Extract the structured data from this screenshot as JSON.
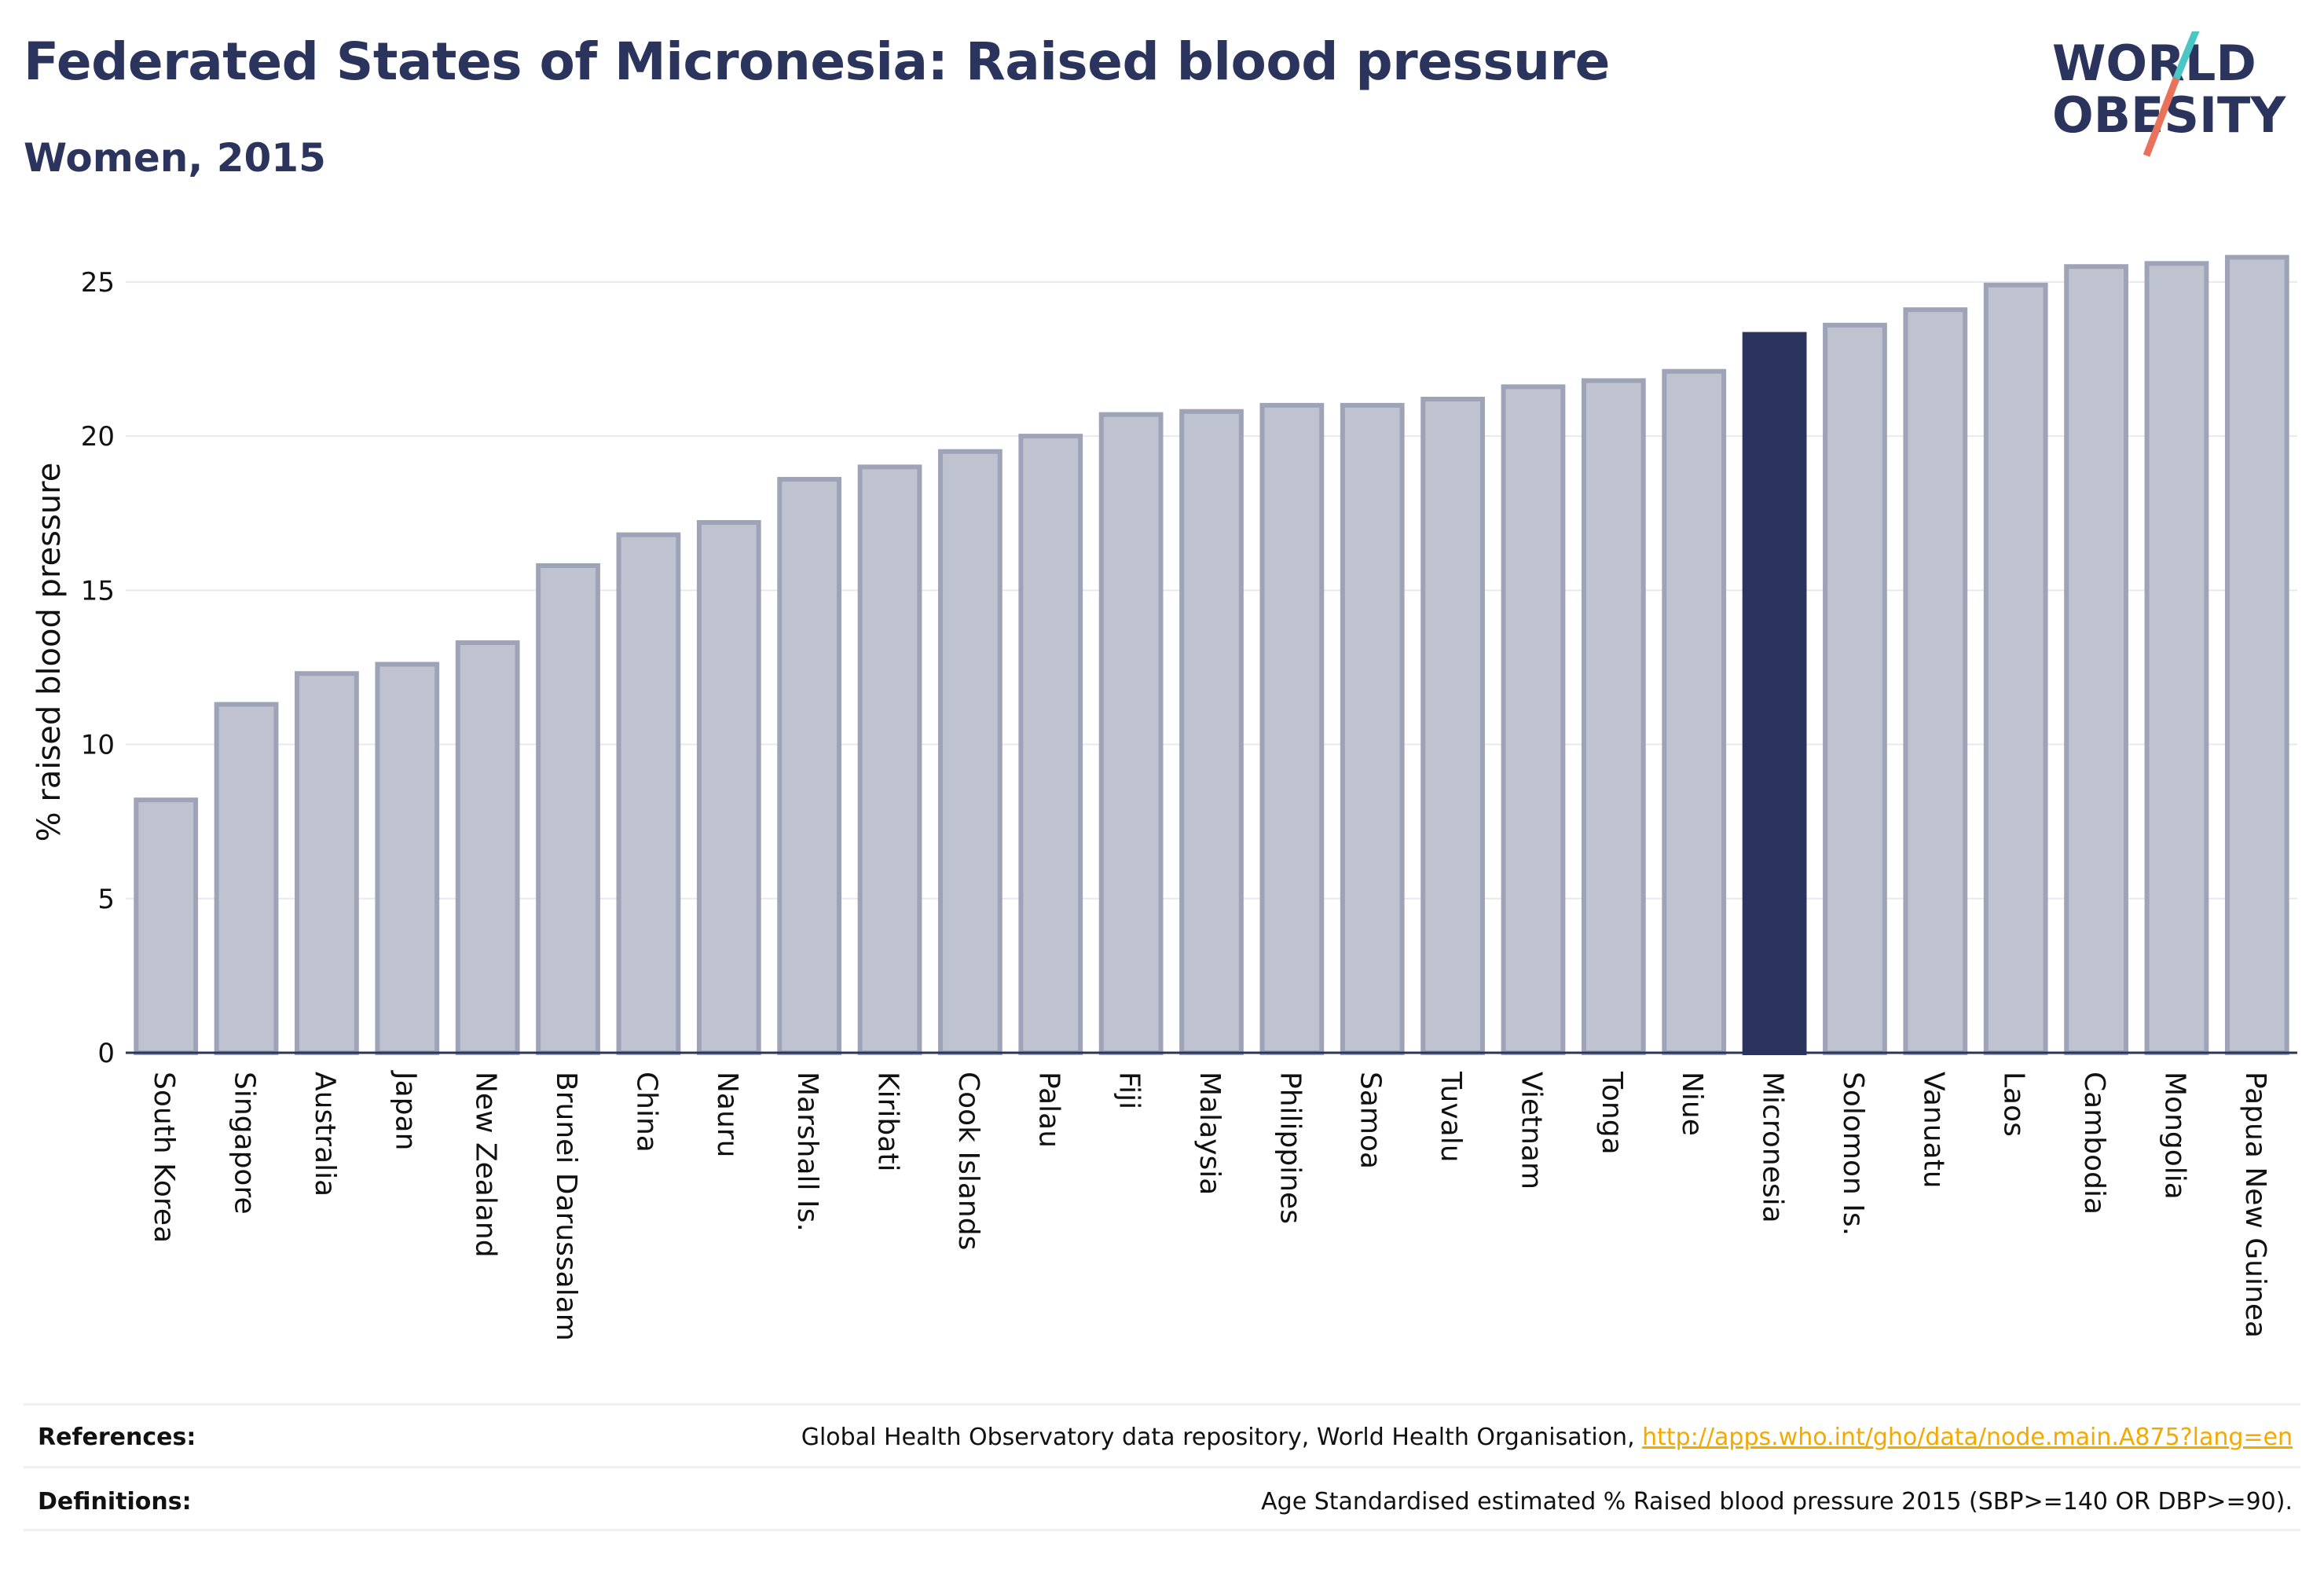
{
  "header": {
    "title": "Federated States of Micronesia: Raised blood pressure",
    "subtitle": "Women, 2015"
  },
  "logo": {
    "line1": "WORLD",
    "line2": "OBESITY",
    "slash_colors": [
      "#4bc6c4",
      "#e8735a"
    ]
  },
  "colors": {
    "bar_fill": "#bfc2cf",
    "bar_stroke": "#9ea3b8",
    "highlight": "#2b345c",
    "axis": "#2b345c",
    "grid": "#e8e8ef",
    "title": "#2b345c"
  },
  "chart_data": {
    "type": "bar",
    "ylabel": "% raised blood pressure",
    "xlabel": "",
    "ylim": [
      0,
      26.5
    ],
    "yticks": [
      0,
      5,
      10,
      15,
      20,
      25
    ],
    "grid": true,
    "highlight": "Micronesia",
    "categories": [
      "South Korea",
      "Singapore",
      "Australia",
      "Japan",
      "New Zealand",
      "Brunei Darussalam",
      "China",
      "Nauru",
      "Marshall Is.",
      "Kiribati",
      "Cook Islands",
      "Palau",
      "Fiji",
      "Malaysia",
      "Philippines",
      "Samoa",
      "Tuvalu",
      "Vietnam",
      "Tonga",
      "Niue",
      "Micronesia",
      "Solomon Is.",
      "Vanuatu",
      "Laos",
      "Cambodia",
      "Mongolia",
      "Papua New Guinea"
    ],
    "values": [
      8.2,
      11.3,
      12.3,
      12.6,
      13.3,
      15.8,
      16.8,
      17.2,
      18.6,
      19.0,
      19.5,
      20.0,
      20.7,
      20.8,
      21.0,
      21.0,
      21.2,
      21.6,
      21.8,
      22.1,
      23.3,
      23.6,
      24.1,
      24.9,
      25.5,
      25.6,
      25.8
    ]
  },
  "footer": {
    "references_label": "References:",
    "references_text": "Global Health Observatory data repository, World Health Organisation, ",
    "references_link": "http://apps.who.int/gho/data/node.main.A875?lang=en",
    "definitions_label": "Definitions:",
    "definitions_text": "Age Standardised estimated % Raised blood pressure 2015 (SBP>=140 OR DBP>=90)."
  }
}
